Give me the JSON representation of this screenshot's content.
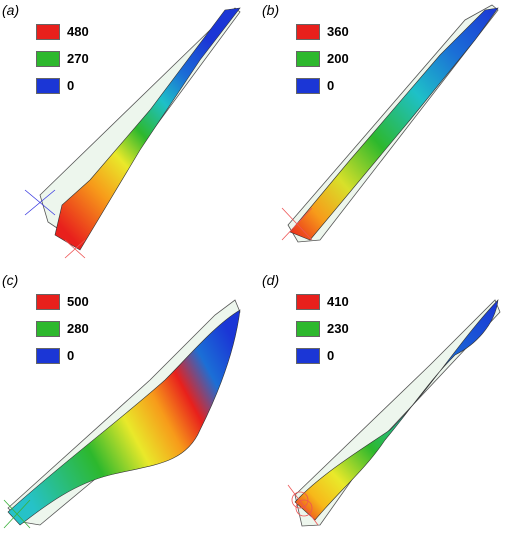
{
  "colors": {
    "max": "#e8201c",
    "mid": "#2db82d",
    "min": "#1b36d6"
  },
  "panels": [
    {
      "label": "(a)",
      "legend": [
        "480",
        "270",
        "0"
      ]
    },
    {
      "label": "(b)",
      "legend": [
        "360",
        "200",
        "0"
      ]
    },
    {
      "label": "(c)",
      "legend": [
        "500",
        "280",
        "0"
      ]
    },
    {
      "label": "(d)",
      "legend": [
        "410",
        "230",
        "0"
      ]
    }
  ]
}
